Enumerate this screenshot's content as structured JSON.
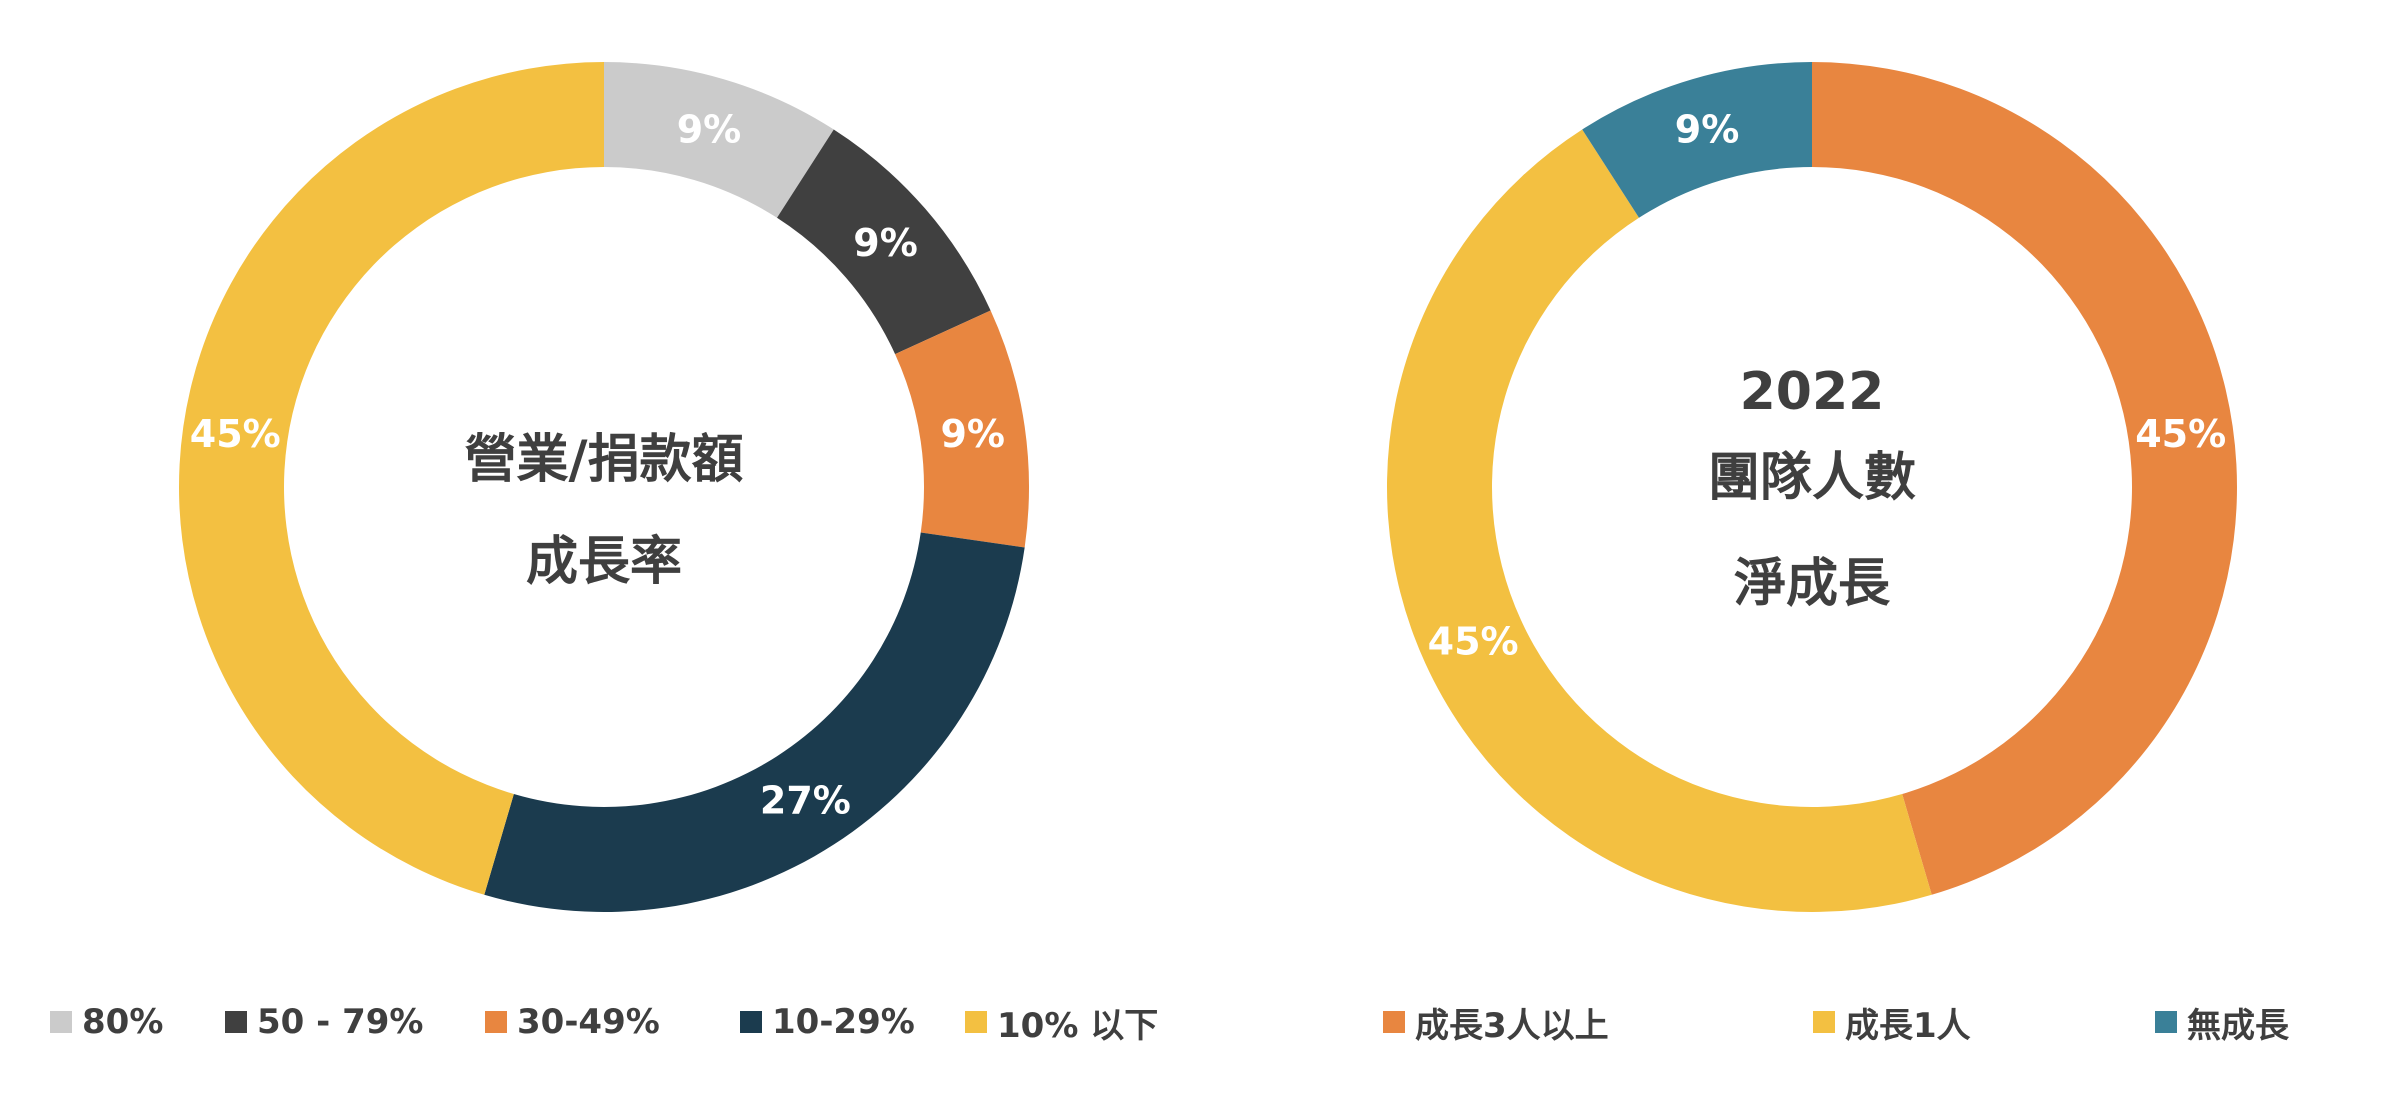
{
  "chart_data": [
    {
      "type": "pie",
      "donut": true,
      "center_text": [
        "營業/捐款額",
        "成長率"
      ],
      "categories": [
        "80%",
        "50 - 79%",
        "30-49%",
        "10-29%",
        "10% 以下"
      ],
      "values": [
        9,
        9,
        9,
        27,
        45
      ],
      "labels": [
        "9%",
        "9%",
        "9%",
        "27%",
        "45%"
      ],
      "colors": [
        "#cbcbcb",
        "#404040",
        "#e88640",
        "#1b3b4e",
        "#f3c041"
      ],
      "legend_position": "bottom"
    },
    {
      "type": "pie",
      "donut": true,
      "center_text": [
        "2022",
        "團隊人數",
        "淨成長"
      ],
      "categories": [
        "成長3人以上",
        "成長1人",
        "無成長"
      ],
      "values": [
        45,
        45,
        9
      ],
      "labels": [
        "45%",
        "45%",
        "9%"
      ],
      "colors": [
        "#e88640",
        "#f3c041",
        "#3a8098"
      ],
      "legend_position": "bottom"
    }
  ]
}
